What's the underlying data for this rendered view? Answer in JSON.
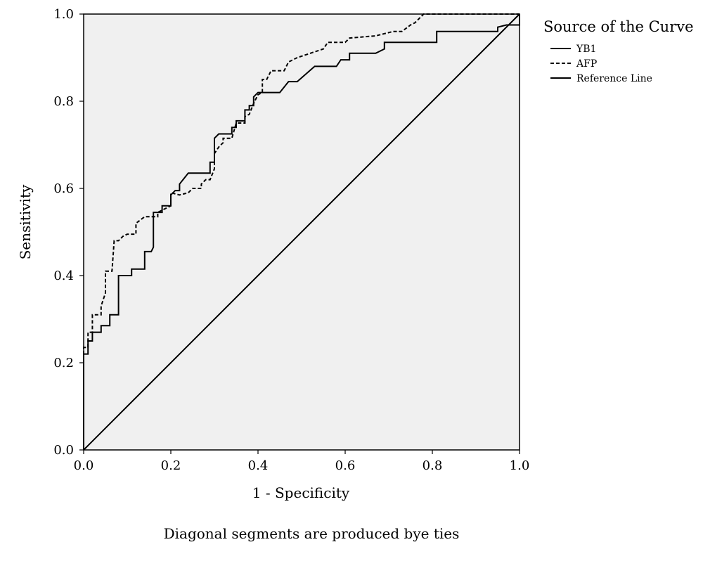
{
  "chart_data": {
    "type": "line",
    "title": "",
    "xlabel": "1 - Specificity",
    "ylabel": "Sensitivity",
    "xlim": [
      0,
      1
    ],
    "ylim": [
      0,
      1
    ],
    "x_ticks": [
      "0.0",
      "0.2",
      "0.4",
      "0.6",
      "0.8",
      "1.0"
    ],
    "y_ticks": [
      "0.0",
      "0.2",
      "0.4",
      "0.6",
      "0.8",
      "1.0"
    ],
    "grid": false,
    "legend_position": "right",
    "legend_title": "Source of the Curve",
    "footnote": "Diagonal  segments are produced bye ties",
    "background_color": "#f0f0f0",
    "series": [
      {
        "name": "YB1",
        "style": "solid",
        "color": "#000000",
        "points": [
          [
            0.0,
            0.0
          ],
          [
            0.0,
            0.22
          ],
          [
            0.01,
            0.22
          ],
          [
            0.01,
            0.25
          ],
          [
            0.02,
            0.25
          ],
          [
            0.02,
            0.27
          ],
          [
            0.04,
            0.27
          ],
          [
            0.04,
            0.285
          ],
          [
            0.06,
            0.285
          ],
          [
            0.06,
            0.31
          ],
          [
            0.08,
            0.31
          ],
          [
            0.08,
            0.4
          ],
          [
            0.11,
            0.4
          ],
          [
            0.11,
            0.415
          ],
          [
            0.14,
            0.415
          ],
          [
            0.14,
            0.455
          ],
          [
            0.155,
            0.455
          ],
          [
            0.16,
            0.465
          ],
          [
            0.16,
            0.545
          ],
          [
            0.18,
            0.545
          ],
          [
            0.18,
            0.56
          ],
          [
            0.2,
            0.56
          ],
          [
            0.2,
            0.585
          ],
          [
            0.21,
            0.595
          ],
          [
            0.22,
            0.595
          ],
          [
            0.22,
            0.61
          ],
          [
            0.24,
            0.635
          ],
          [
            0.29,
            0.635
          ],
          [
            0.29,
            0.66
          ],
          [
            0.3,
            0.66
          ],
          [
            0.3,
            0.715
          ],
          [
            0.31,
            0.725
          ],
          [
            0.34,
            0.725
          ],
          [
            0.34,
            0.74
          ],
          [
            0.35,
            0.74
          ],
          [
            0.35,
            0.755
          ],
          [
            0.37,
            0.755
          ],
          [
            0.37,
            0.78
          ],
          [
            0.38,
            0.78
          ],
          [
            0.38,
            0.79
          ],
          [
            0.39,
            0.79
          ],
          [
            0.39,
            0.81
          ],
          [
            0.4,
            0.82
          ],
          [
            0.45,
            0.82
          ],
          [
            0.47,
            0.845
          ],
          [
            0.49,
            0.845
          ],
          [
            0.53,
            0.88
          ],
          [
            0.58,
            0.88
          ],
          [
            0.59,
            0.895
          ],
          [
            0.61,
            0.895
          ],
          [
            0.61,
            0.91
          ],
          [
            0.67,
            0.91
          ],
          [
            0.69,
            0.92
          ],
          [
            0.69,
            0.935
          ],
          [
            0.81,
            0.935
          ],
          [
            0.81,
            0.96
          ],
          [
            0.95,
            0.96
          ],
          [
            0.95,
            0.97
          ],
          [
            0.97,
            0.975
          ],
          [
            1.0,
            0.975
          ],
          [
            1.0,
            1.0
          ]
        ]
      },
      {
        "name": "AFP",
        "style": "dashed",
        "color": "#000000",
        "points": [
          [
            0.0,
            0.0
          ],
          [
            0.0,
            0.235
          ],
          [
            0.01,
            0.235
          ],
          [
            0.01,
            0.27
          ],
          [
            0.02,
            0.27
          ],
          [
            0.02,
            0.31
          ],
          [
            0.04,
            0.31
          ],
          [
            0.04,
            0.33
          ],
          [
            0.05,
            0.36
          ],
          [
            0.05,
            0.41
          ],
          [
            0.065,
            0.41
          ],
          [
            0.07,
            0.48
          ],
          [
            0.08,
            0.48
          ],
          [
            0.09,
            0.49
          ],
          [
            0.1,
            0.495
          ],
          [
            0.12,
            0.495
          ],
          [
            0.12,
            0.52
          ],
          [
            0.14,
            0.535
          ],
          [
            0.17,
            0.535
          ],
          [
            0.17,
            0.545
          ],
          [
            0.2,
            0.56
          ],
          [
            0.2,
            0.59
          ],
          [
            0.22,
            0.585
          ],
          [
            0.24,
            0.59
          ],
          [
            0.25,
            0.6
          ],
          [
            0.27,
            0.6
          ],
          [
            0.27,
            0.61
          ],
          [
            0.28,
            0.62
          ],
          [
            0.29,
            0.62
          ],
          [
            0.3,
            0.645
          ],
          [
            0.3,
            0.68
          ],
          [
            0.31,
            0.695
          ],
          [
            0.32,
            0.705
          ],
          [
            0.32,
            0.715
          ],
          [
            0.34,
            0.715
          ],
          [
            0.35,
            0.75
          ],
          [
            0.37,
            0.75
          ],
          [
            0.37,
            0.765
          ],
          [
            0.38,
            0.77
          ],
          [
            0.39,
            0.795
          ],
          [
            0.4,
            0.815
          ],
          [
            0.41,
            0.82
          ],
          [
            0.41,
            0.85
          ],
          [
            0.42,
            0.85
          ],
          [
            0.43,
            0.87
          ],
          [
            0.46,
            0.87
          ],
          [
            0.47,
            0.89
          ],
          [
            0.49,
            0.9
          ],
          [
            0.55,
            0.92
          ],
          [
            0.56,
            0.935
          ],
          [
            0.6,
            0.935
          ],
          [
            0.61,
            0.945
          ],
          [
            0.67,
            0.95
          ],
          [
            0.69,
            0.955
          ],
          [
            0.71,
            0.96
          ],
          [
            0.73,
            0.96
          ],
          [
            0.75,
            0.975
          ],
          [
            0.76,
            0.98
          ],
          [
            0.78,
            1.0
          ],
          [
            1.0,
            1.0
          ]
        ]
      },
      {
        "name": "Reference Line",
        "style": "solid",
        "color": "#000000",
        "points": [
          [
            0.0,
            0.0
          ],
          [
            1.0,
            1.0
          ]
        ]
      }
    ]
  }
}
